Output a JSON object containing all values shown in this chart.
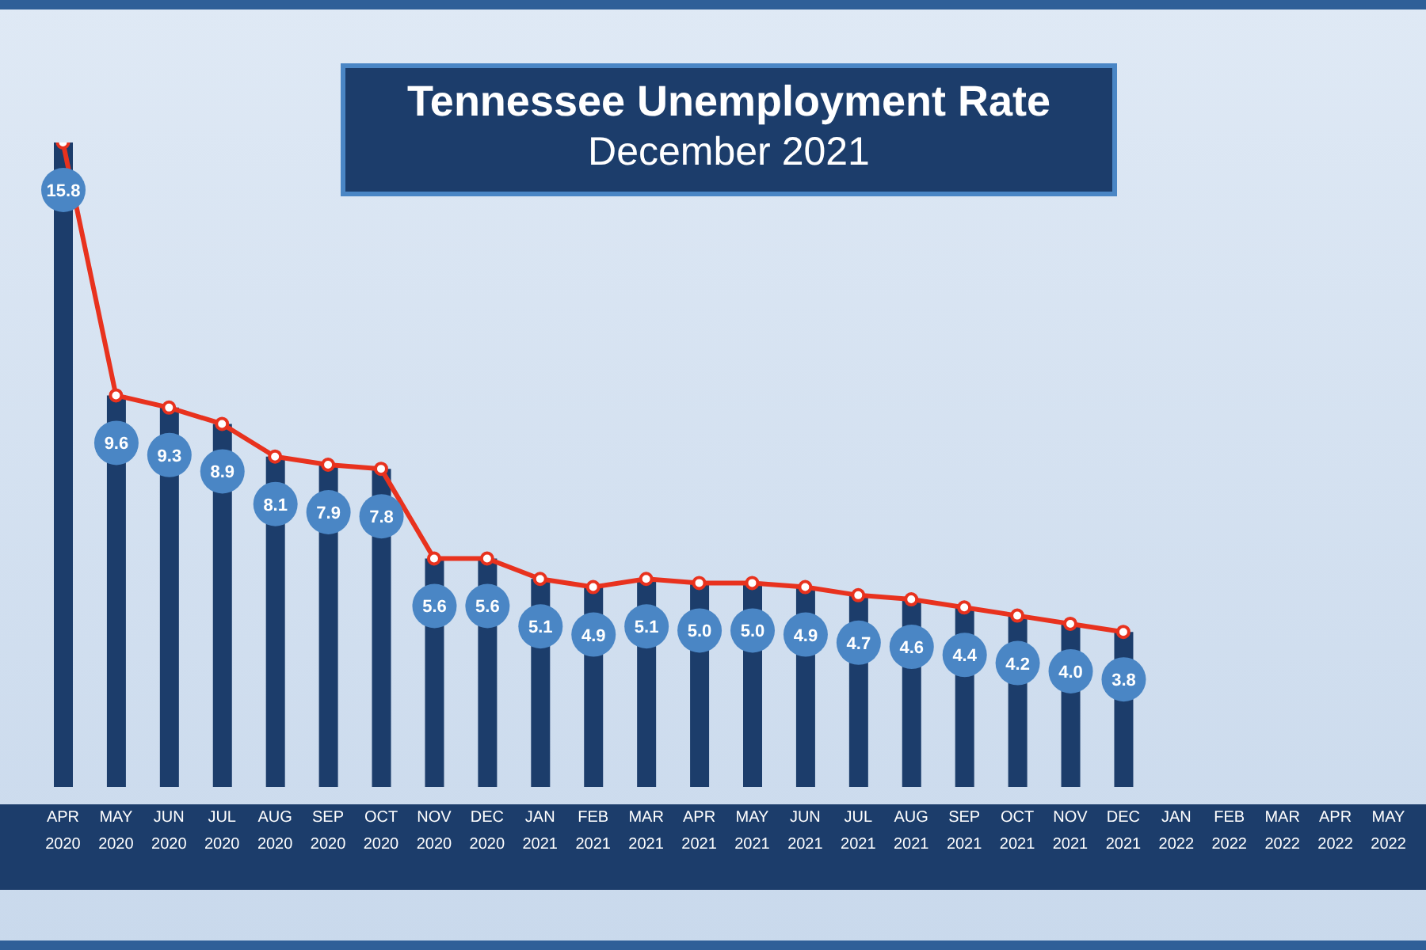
{
  "chart_data": {
    "type": "bar",
    "title": "Tennessee Unemployment Rate",
    "subtitle": "December 2021",
    "categories": [
      "APR 2020",
      "MAY 2020",
      "JUN 2020",
      "JUL 2020",
      "AUG 2020",
      "SEP 2020",
      "OCT 2020",
      "NOV 2020",
      "DEC 2020",
      "JAN 2021",
      "FEB 2021",
      "MAR 2021",
      "APR 2021",
      "MAY 2021",
      "JUN 2021",
      "JUL 2021",
      "AUG 2021",
      "SEP 2021",
      "OCT 2021",
      "NOV 2021",
      "DEC 2021",
      "JAN 2022",
      "FEB 2022",
      "MAR 2022",
      "APR 2022",
      "MAY 2022"
    ],
    "series": [
      {
        "color": "#1c3d6b",
        "values": [
          15.8,
          9.6,
          9.3,
          8.9,
          8.1,
          7.9,
          7.8,
          5.6,
          5.6,
          5.1,
          4.9,
          5.1,
          5.0,
          5.0,
          4.9,
          4.7,
          4.6,
          4.4,
          4.2,
          4.0,
          3.8,
          null,
          null,
          null,
          null,
          null
        ],
        "value_labels": [
          "15.8",
          "9.6",
          "9.3",
          "8.9",
          "8.1",
          "7.9",
          "7.8",
          "5.6",
          "5.6",
          "5.1",
          "4.9",
          "5.1",
          "5.0",
          "5.0",
          "4.9",
          "4.7",
          "4.6",
          "4.4",
          "4.2",
          "4.0",
          "3.8",
          null,
          null,
          null,
          null,
          null
        ]
      },
      {
        "type": "line",
        "color": "#e8321e",
        "values": [
          15.8,
          9.6,
          9.3,
          8.9,
          8.1,
          7.9,
          7.8,
          5.6,
          5.6,
          5.1,
          4.9,
          5.1,
          5.0,
          5.0,
          4.9,
          4.7,
          4.6,
          4.4,
          4.2,
          4.0,
          3.8,
          null,
          null,
          null,
          null,
          null
        ]
      }
    ],
    "tick_labels": "x",
    "marker": "circle",
    "line_style": "solid",
    "legend": false,
    "grid": false
  }
}
